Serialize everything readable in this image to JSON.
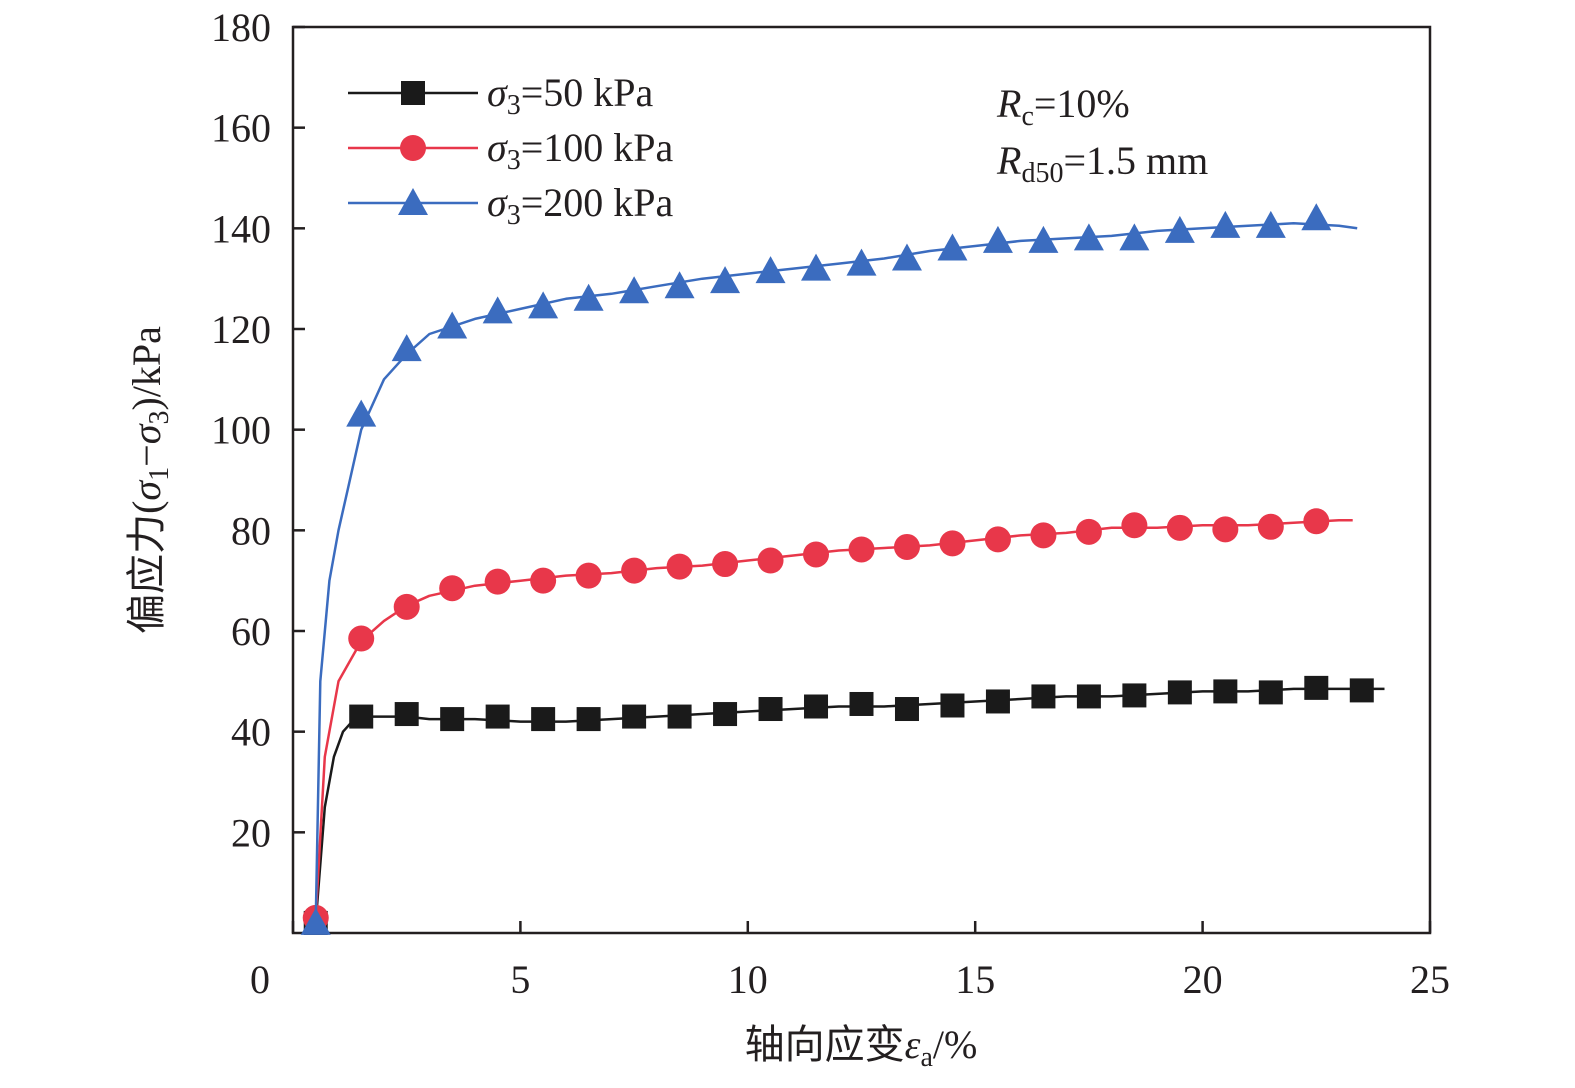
{
  "chart_data": {
    "type": "line",
    "xlabel": "轴向应变εa/%",
    "xlabel_parts": {
      "prefix": "轴向应变",
      "sym": "ε",
      "sub": "a",
      "suffix": "/%"
    },
    "ylabel": "偏应力(σ1−σ3)/kPa",
    "ylabel_parts": {
      "prefix": "偏应力(",
      "sym1": "σ",
      "sub1": "1",
      "minus": "−",
      "sym2": "σ",
      "sub2": "3",
      "suffix": ")/kPa"
    },
    "xlim": [
      0,
      25
    ],
    "ylim": [
      0,
      180
    ],
    "xticks": [
      "0",
      "5",
      "10",
      "15",
      "20",
      "25"
    ],
    "yticks": [
      "20",
      "40",
      "60",
      "80",
      "100",
      "120",
      "140",
      "160",
      "180"
    ],
    "grid": false,
    "legend_position": "top-left",
    "annotations": [
      {
        "sym": "R",
        "sub": "c",
        "text": "=10%"
      },
      {
        "sym": "R",
        "sub": "d50",
        "text": "=1.5 mm"
      }
    ],
    "series": [
      {
        "name": "σ3=50 kPa",
        "label_sym": "σ",
        "label_sub": "3",
        "label_text": "=50 kPa",
        "color": "#1a1a1a",
        "marker": "square",
        "curve": [
          [
            0.5,
            2
          ],
          [
            0.7,
            25
          ],
          [
            0.9,
            35
          ],
          [
            1.1,
            40
          ],
          [
            1.3,
            42
          ],
          [
            1.6,
            43
          ],
          [
            2,
            43
          ],
          [
            2.5,
            43
          ],
          [
            3,
            42.5
          ],
          [
            4,
            42.5
          ],
          [
            5,
            42
          ],
          [
            6,
            42
          ],
          [
            7,
            42.5
          ],
          [
            8,
            43
          ],
          [
            9,
            43.5
          ],
          [
            10,
            44
          ],
          [
            11,
            44.5
          ],
          [
            12,
            45
          ],
          [
            13,
            45
          ],
          [
            14,
            45.5
          ],
          [
            15,
            46
          ],
          [
            16,
            46.5
          ],
          [
            17,
            47
          ],
          [
            18,
            47
          ],
          [
            19,
            47.5
          ],
          [
            20,
            48
          ],
          [
            21,
            48
          ],
          [
            22,
            48.5
          ],
          [
            23,
            48.5
          ],
          [
            24,
            48.5
          ]
        ],
        "markers": [
          [
            0.5,
            2
          ],
          [
            1.5,
            43
          ],
          [
            2.5,
            43.5
          ],
          [
            3.5,
            42.5
          ],
          [
            4.5,
            43
          ],
          [
            5.5,
            42.5
          ],
          [
            6.5,
            42.5
          ],
          [
            7.5,
            43
          ],
          [
            8.5,
            43
          ],
          [
            9.5,
            43.5
          ],
          [
            10.5,
            44.5
          ],
          [
            11.5,
            45
          ],
          [
            12.5,
            45.5
          ],
          [
            13.5,
            44.5
          ],
          [
            14.5,
            45.2
          ],
          [
            15.5,
            46
          ],
          [
            16.5,
            47
          ],
          [
            17.5,
            47
          ],
          [
            18.5,
            47.2
          ],
          [
            19.5,
            47.8
          ],
          [
            20.5,
            48
          ],
          [
            21.5,
            47.8
          ],
          [
            22.5,
            48.7
          ],
          [
            23.5,
            48.2
          ]
        ]
      },
      {
        "name": "σ3=100 kPa",
        "label_sym": "σ",
        "label_sub": "3",
        "label_text": "=100 kPa",
        "color": "#e8374a",
        "marker": "circle",
        "curve": [
          [
            0.5,
            3
          ],
          [
            0.7,
            35
          ],
          [
            1,
            50
          ],
          [
            1.5,
            58
          ],
          [
            2,
            62
          ],
          [
            2.5,
            65
          ],
          [
            3,
            67
          ],
          [
            4,
            69
          ],
          [
            5,
            70
          ],
          [
            6,
            71
          ],
          [
            7,
            71.5
          ],
          [
            8,
            72.5
          ],
          [
            9,
            73
          ],
          [
            10,
            74
          ],
          [
            11,
            75
          ],
          [
            12,
            76
          ],
          [
            13,
            76.5
          ],
          [
            14,
            77
          ],
          [
            15,
            78
          ],
          [
            16,
            79
          ],
          [
            17,
            79.5
          ],
          [
            18,
            80.5
          ],
          [
            19,
            80.5
          ],
          [
            20,
            81
          ],
          [
            21,
            81
          ],
          [
            22,
            81.5
          ],
          [
            23,
            82
          ],
          [
            23.3,
            82
          ]
        ],
        "markers": [
          [
            0.5,
            3
          ],
          [
            1.5,
            58.5
          ],
          [
            2.5,
            64.8
          ],
          [
            3.5,
            68.5
          ],
          [
            4.5,
            69.8
          ],
          [
            5.5,
            70
          ],
          [
            6.5,
            71
          ],
          [
            7.5,
            72
          ],
          [
            8.5,
            72.8
          ],
          [
            9.5,
            73.3
          ],
          [
            10.5,
            74
          ],
          [
            11.5,
            75.2
          ],
          [
            12.5,
            76.2
          ],
          [
            13.5,
            76.7
          ],
          [
            14.5,
            77.4
          ],
          [
            15.5,
            78.2
          ],
          [
            16.5,
            79
          ],
          [
            17.5,
            79.7
          ],
          [
            18.5,
            81
          ],
          [
            19.5,
            80.5
          ],
          [
            20.5,
            80.2
          ],
          [
            21.5,
            80.7
          ],
          [
            22.5,
            81.8
          ]
        ]
      },
      {
        "name": "σ3=200 kPa",
        "label_sym": "σ",
        "label_sub": "3",
        "label_text": "=200 kPa",
        "color": "#3b6cbf",
        "marker": "triangle",
        "curve": [
          [
            0.5,
            2
          ],
          [
            0.6,
            50
          ],
          [
            0.8,
            70
          ],
          [
            1,
            80
          ],
          [
            1.2,
            88
          ],
          [
            1.5,
            100
          ],
          [
            2,
            110
          ],
          [
            2.5,
            115
          ],
          [
            3,
            119
          ],
          [
            4,
            122
          ],
          [
            5,
            124
          ],
          [
            6,
            126
          ],
          [
            7,
            127
          ],
          [
            8,
            128.5
          ],
          [
            9,
            130
          ],
          [
            10,
            131
          ],
          [
            11,
            132
          ],
          [
            12,
            133
          ],
          [
            13,
            134
          ],
          [
            14,
            135.5
          ],
          [
            15,
            136.5
          ],
          [
            16,
            137.5
          ],
          [
            17,
            138
          ],
          [
            18,
            138.5
          ],
          [
            19,
            139.5
          ],
          [
            20,
            140
          ],
          [
            21,
            140.5
          ],
          [
            22,
            141
          ],
          [
            23,
            140.5
          ],
          [
            23.4,
            140
          ]
        ],
        "markers": [
          [
            0.5,
            2
          ],
          [
            1.5,
            103
          ],
          [
            2.5,
            116
          ],
          [
            3.5,
            120.5
          ],
          [
            4.5,
            123.5
          ],
          [
            5.5,
            124.5
          ],
          [
            6.5,
            126
          ],
          [
            7.5,
            127.5
          ],
          [
            8.5,
            128.5
          ],
          [
            9.5,
            129.5
          ],
          [
            10.5,
            131.5
          ],
          [
            11.5,
            132
          ],
          [
            12.5,
            133
          ],
          [
            13.5,
            134
          ],
          [
            14.5,
            136
          ],
          [
            15.5,
            137.5
          ],
          [
            16.5,
            137.5
          ],
          [
            17.5,
            138
          ],
          [
            18.5,
            138
          ],
          [
            19.5,
            139.5
          ],
          [
            20.5,
            140.5
          ],
          [
            21.5,
            140.5
          ],
          [
            22.5,
            142
          ]
        ]
      }
    ]
  }
}
